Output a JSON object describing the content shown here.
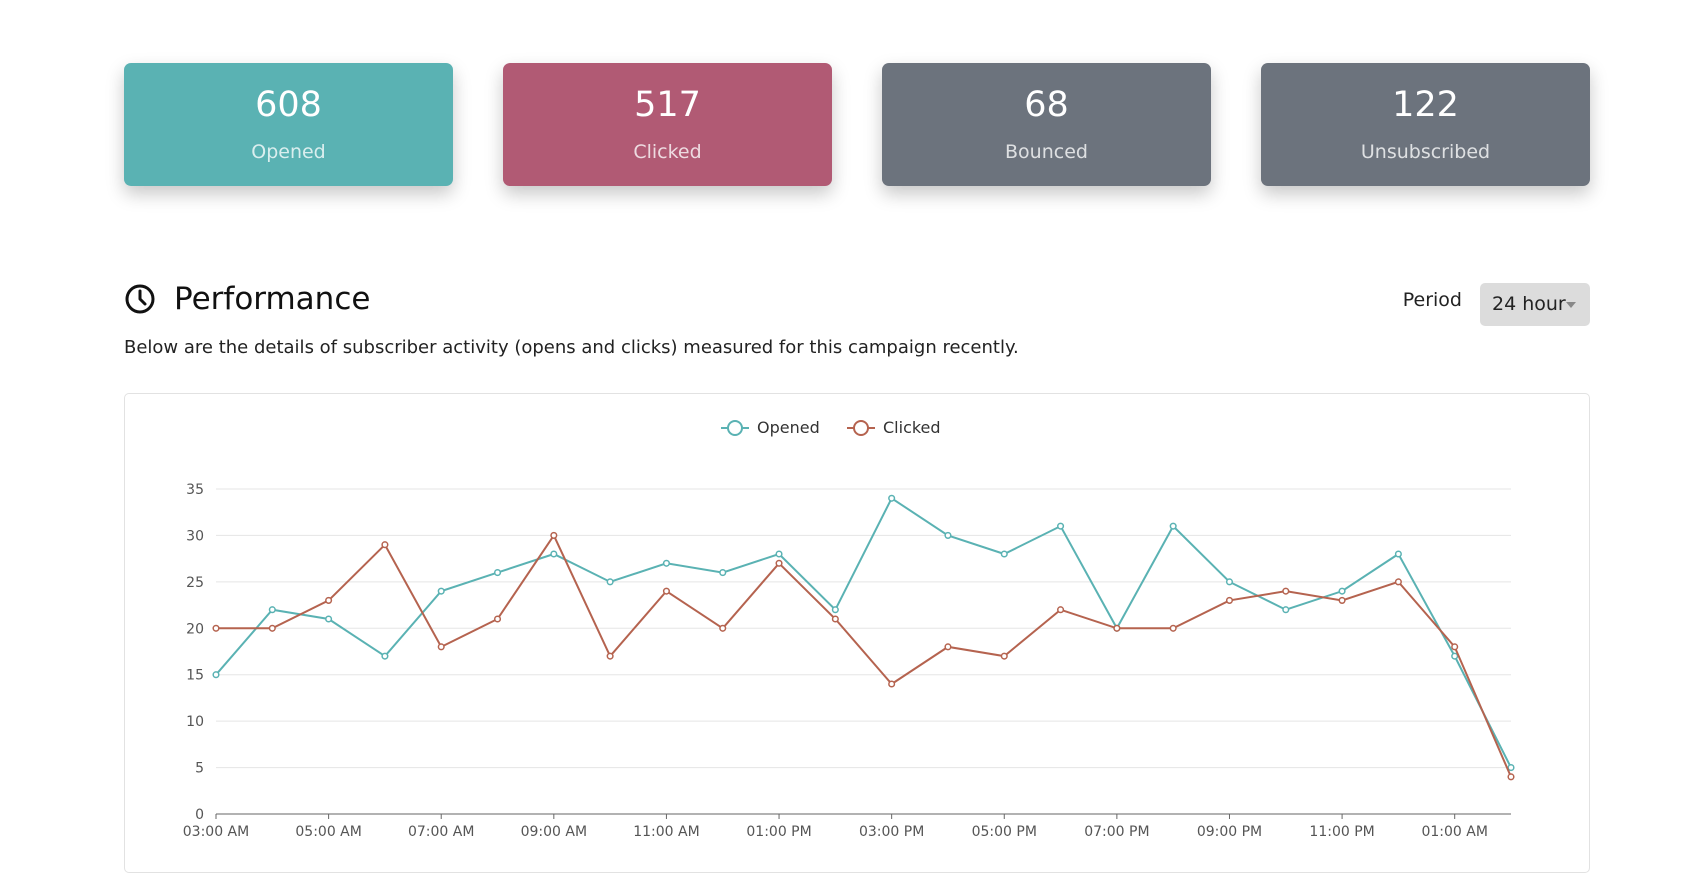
{
  "stats": [
    {
      "value": "608",
      "label": "Opened",
      "color": "#5ab2b3"
    },
    {
      "value": "517",
      "label": "Clicked",
      "color": "#b15a74"
    },
    {
      "value": "68",
      "label": "Bounced",
      "color": "#6c737d"
    },
    {
      "value": "122",
      "label": "Unsubscribed",
      "color": "#6c737d"
    }
  ],
  "performance": {
    "title": "Performance",
    "description": "Below are the details of subscriber activity (opens and clicks) measured for this campaign recently.",
    "period_label": "Period",
    "period_value": "24 hour"
  },
  "chart_data": {
    "type": "line",
    "title": "",
    "xlabel": "",
    "ylabel": "",
    "ylim": [
      0,
      35
    ],
    "yticks": [
      0,
      5,
      10,
      15,
      20,
      25,
      30,
      35
    ],
    "grid": true,
    "legend_position": "top-center",
    "x": [
      "03:00 AM",
      "04:00 AM",
      "05:00 AM",
      "06:00 AM",
      "07:00 AM",
      "08:00 AM",
      "09:00 AM",
      "10:00 AM",
      "11:00 AM",
      "12:00 PM",
      "01:00 PM",
      "02:00 PM",
      "03:00 PM",
      "04:00 PM",
      "05:00 PM",
      "06:00 PM",
      "07:00 PM",
      "08:00 PM",
      "09:00 PM",
      "10:00 PM",
      "11:00 PM",
      "12:00 AM",
      "01:00 AM",
      "02:00 AM"
    ],
    "x_tick_labels": [
      "03:00 AM",
      "05:00 AM",
      "07:00 AM",
      "09:00 AM",
      "11:00 AM",
      "01:00 PM",
      "03:00 PM",
      "05:00 PM",
      "07:00 PM",
      "09:00 PM",
      "11:00 PM",
      "01:00 AM"
    ],
    "series": [
      {
        "name": "Opened",
        "color": "#5ab2b3",
        "values": [
          15,
          22,
          21,
          17,
          24,
          26,
          28,
          25,
          27,
          26,
          28,
          22,
          34,
          30,
          28,
          31,
          20,
          31,
          25,
          22,
          24,
          28,
          17,
          5
        ]
      },
      {
        "name": "Clicked",
        "color": "#b5634f",
        "values": [
          20,
          20,
          23,
          29,
          18,
          21,
          30,
          17,
          24,
          20,
          27,
          21,
          14,
          18,
          17,
          22,
          20,
          20,
          23,
          24,
          23,
          25,
          18,
          4
        ]
      }
    ]
  }
}
